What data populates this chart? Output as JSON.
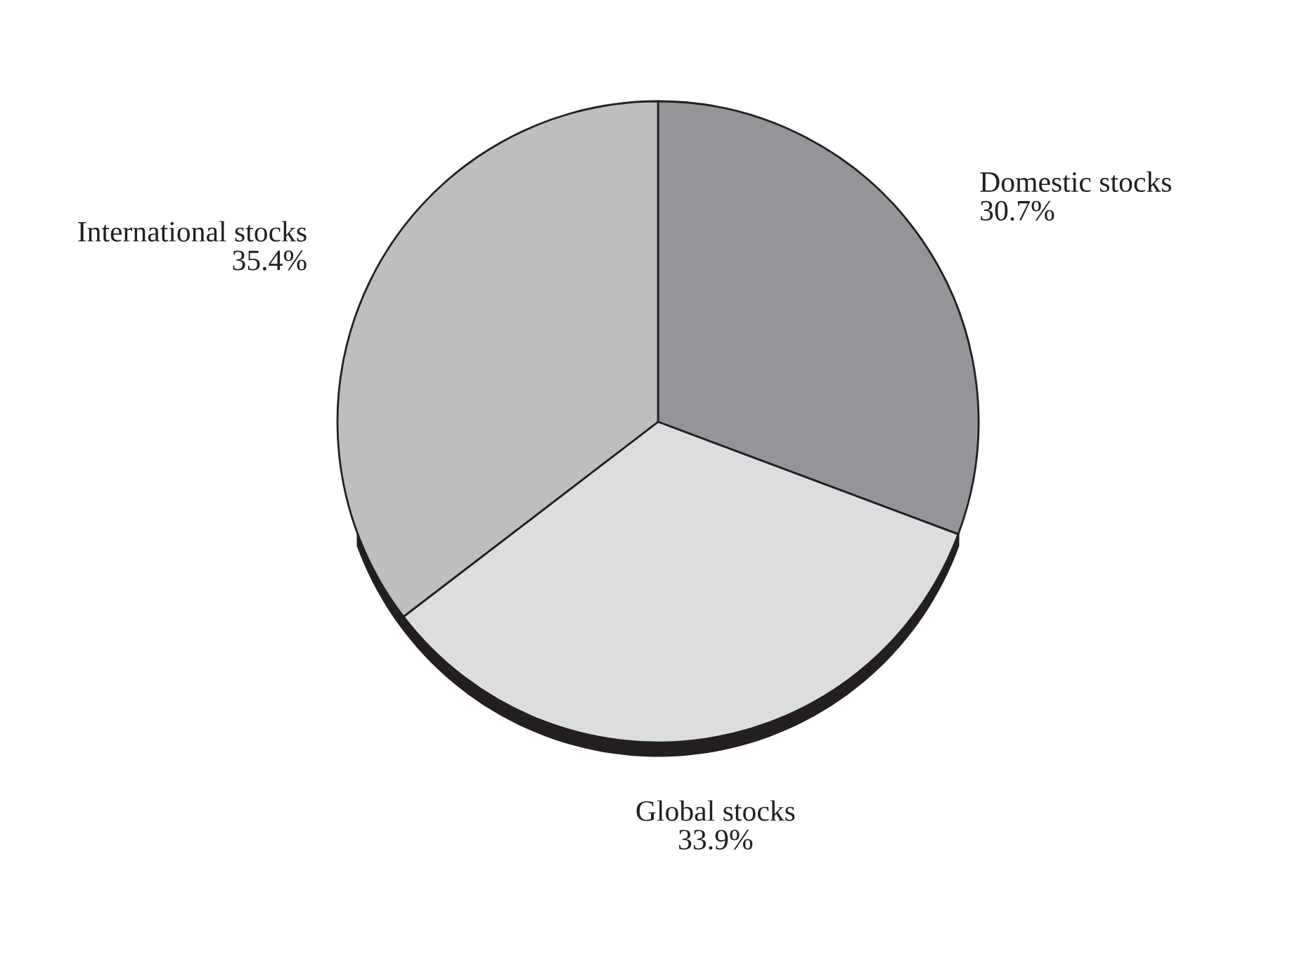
{
  "chart_data": {
    "type": "pie",
    "categories": [
      "Domestic stocks",
      "Global stocks",
      "International stocks"
    ],
    "values": [
      30.7,
      33.9,
      35.4
    ],
    "colors": [
      "#939598",
      "#dcdddf",
      "#bcbec0"
    ],
    "value_labels": [
      "30.7%",
      "33.9%",
      "35.4%"
    ]
  }
}
